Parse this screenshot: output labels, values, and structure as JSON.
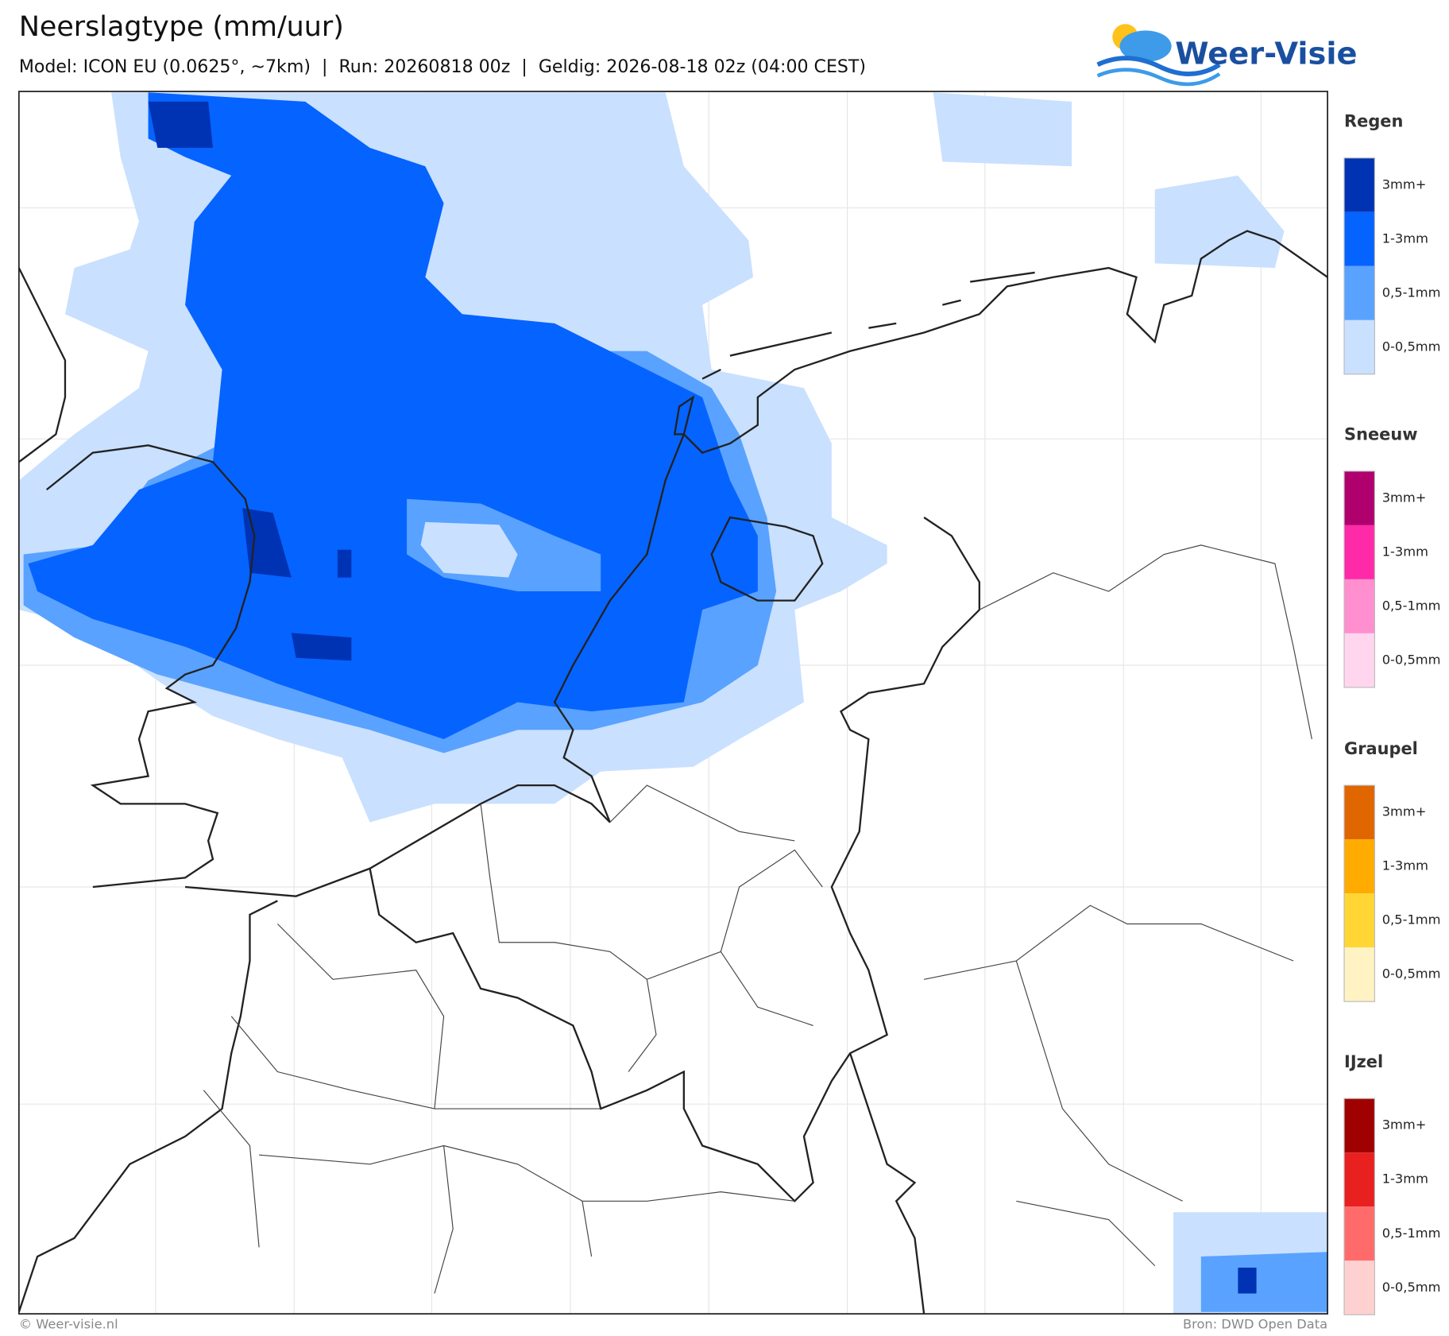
{
  "header": {
    "title": "Neerslagtype (mm/uur)",
    "subtitle": "Model: ICON EU (0.0625°, ~7km)  |  Run: 20260818 00z  |  Geldig: 2026-08-18 02z (04:00 CEST)",
    "logo": "Weer-Visie"
  },
  "legend": [
    {
      "name": "Regen",
      "items": [
        {
          "label": "3mm+",
          "color": "#0033b3"
        },
        {
          "label": "1-3mm",
          "color": "#0563ff"
        },
        {
          "label": "0,5-1mm",
          "color": "#59a2ff"
        },
        {
          "label": "0-0,5mm",
          "color": "#c9e0ff"
        }
      ]
    },
    {
      "name": "Sneeuw",
      "items": [
        {
          "label": "3mm+",
          "color": "#b0006e"
        },
        {
          "label": "1-3mm",
          "color": "#ff2aa8"
        },
        {
          "label": "0,5-1mm",
          "color": "#ff8fcf"
        },
        {
          "label": "0-0,5mm",
          "color": "#ffd6ee"
        }
      ]
    },
    {
      "name": "Graupel",
      "items": [
        {
          "label": "3mm+",
          "color": "#e06600"
        },
        {
          "label": "1-3mm",
          "color": "#ffab00"
        },
        {
          "label": "0,5-1mm",
          "color": "#ffd633"
        },
        {
          "label": "0-0,5mm",
          "color": "#fff3c4"
        }
      ]
    },
    {
      "name": "IJzel",
      "items": [
        {
          "label": "3mm+",
          "color": "#a00000"
        },
        {
          "label": "1-3mm",
          "color": "#e82020"
        },
        {
          "label": "0,5-1mm",
          "color": "#ff6b6b"
        },
        {
          "label": "0-0,5mm",
          "color": "#ffd0d0"
        }
      ]
    }
  ],
  "footer": {
    "left": "© Weer-visie.nl",
    "right": "Bron: DWD Open Data"
  }
}
